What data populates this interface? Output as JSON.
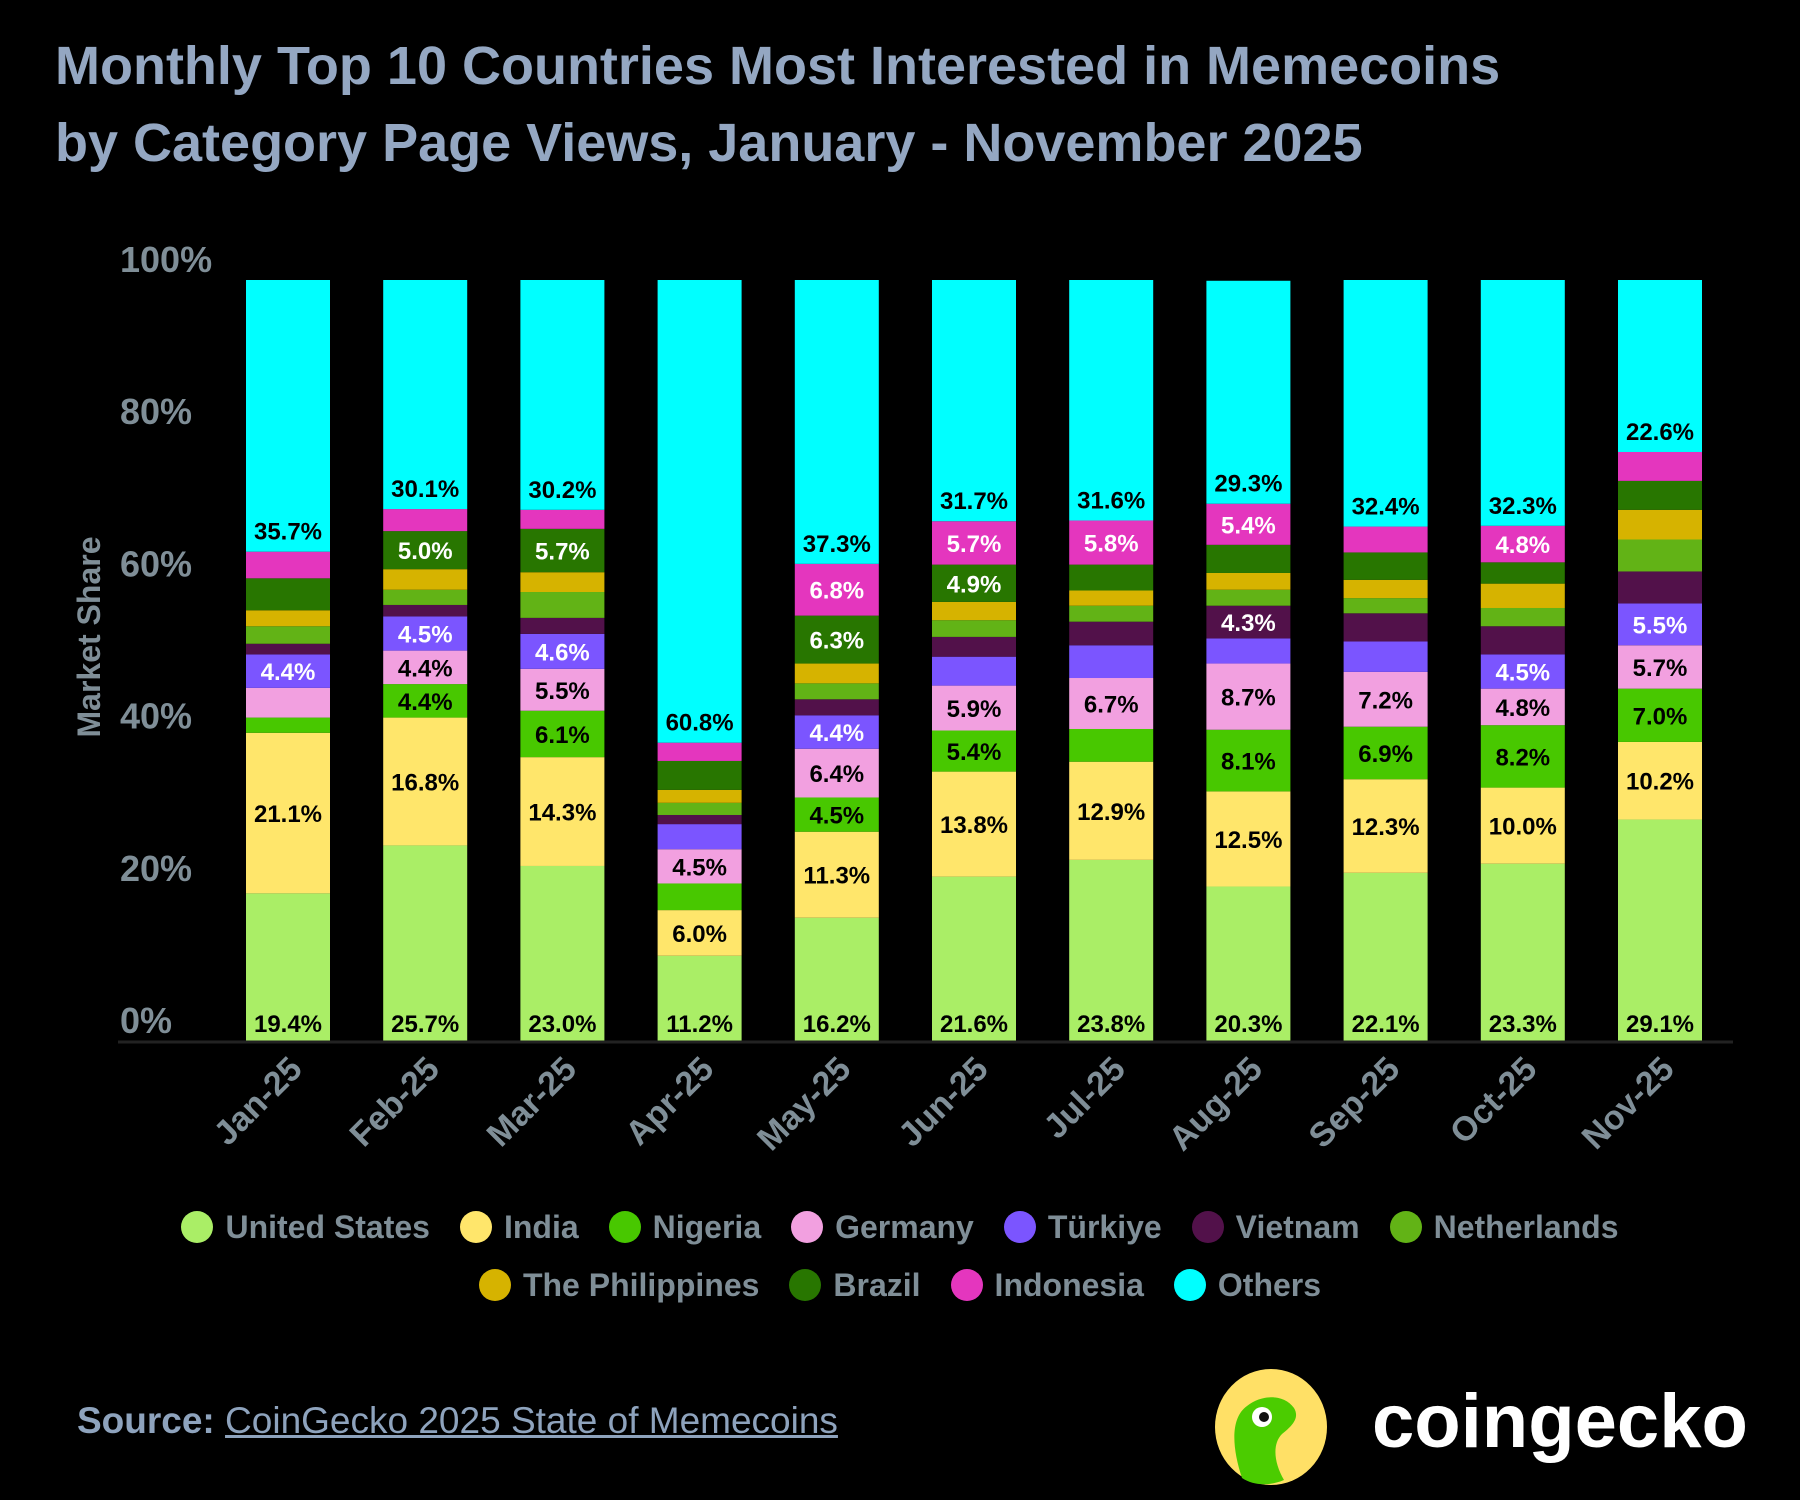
{
  "title": {
    "line1": "Monthly Top 10 Countries Most Interested in Memecoins",
    "line2": "by Category Page Views, January - November 2025"
  },
  "chart_data": {
    "type": "bar",
    "stacked": true,
    "title": "Monthly Top 10 Countries Most Interested in Memecoins by Category Page Views, January - November 2025",
    "xlabel": "",
    "ylabel": "Market Share",
    "ylim": [
      0,
      100
    ],
    "yticks": [
      "0%",
      "20%",
      "40%",
      "60%",
      "80%",
      "100%"
    ],
    "grid": false,
    "legend_position": "bottom",
    "categories": [
      "Jan-25",
      "Feb-25",
      "Mar-25",
      "Apr-25",
      "May-25",
      "Jun-25",
      "Jul-25",
      "Aug-25",
      "Sep-25",
      "Oct-25",
      "Nov-25"
    ],
    "series": [
      {
        "name": "United States",
        "color": "#aaee66",
        "label_color": "#000000",
        "values": [
          19.4,
          25.7,
          23.0,
          11.2,
          16.2,
          21.6,
          23.8,
          20.3,
          22.1,
          23.3,
          29.1
        ],
        "labels": [
          "19.4%",
          "25.7%",
          "23.0%",
          "11.2%",
          "16.2%",
          "21.6%",
          "23.8%",
          "20.3%",
          "22.1%",
          "23.3%",
          "29.1%"
        ]
      },
      {
        "name": "India",
        "color": "#ffe66b",
        "label_color": "#000000",
        "values": [
          21.1,
          16.8,
          14.3,
          6.0,
          11.3,
          13.8,
          12.9,
          12.5,
          12.3,
          10.0,
          10.2
        ],
        "labels": [
          "21.1%",
          "16.8%",
          "14.3%",
          "6.0%",
          "11.3%",
          "13.8%",
          "12.9%",
          "12.5%",
          "12.3%",
          "10.0%",
          "10.2%"
        ]
      },
      {
        "name": "Nigeria",
        "color": "#48c800",
        "label_color": "#000000",
        "values": [
          2.0,
          4.4,
          6.1,
          3.5,
          4.5,
          5.4,
          4.3,
          8.1,
          6.9,
          8.2,
          7.0
        ],
        "labels": [
          "",
          "4.4%",
          "6.1%",
          "",
          "4.5%",
          "5.4%",
          "",
          "8.1%",
          "6.9%",
          "8.2%",
          "7.0%"
        ]
      },
      {
        "name": "Germany",
        "color": "#f2a0e0",
        "label_color": "#000000",
        "values": [
          3.9,
          4.4,
          5.5,
          4.5,
          6.4,
          5.9,
          6.7,
          8.7,
          7.2,
          4.8,
          5.7
        ],
        "labels": [
          "",
          "4.4%",
          "5.5%",
          "4.5%",
          "6.4%",
          "5.9%",
          "6.7%",
          "8.7%",
          "7.2%",
          "4.8%",
          "5.7%"
        ]
      },
      {
        "name": "Türkiye",
        "color": "#7b55ff",
        "label_color": "#ffffff",
        "values": [
          4.4,
          4.5,
          4.6,
          3.3,
          4.4,
          3.8,
          4.3,
          3.3,
          4.0,
          4.5,
          5.5
        ],
        "labels": [
          "4.4%",
          "4.5%",
          "4.6%",
          "",
          "4.4%",
          "",
          "",
          "",
          "",
          "4.5%",
          "5.5%"
        ]
      },
      {
        "name": "Vietnam",
        "color": "#52114a",
        "label_color": "#ffffff",
        "values": [
          1.4,
          1.5,
          2.1,
          1.2,
          2.1,
          2.6,
          3.1,
          4.3,
          3.7,
          3.7,
          4.2
        ],
        "labels": [
          "",
          "",
          "",
          "",
          "",
          "",
          "",
          "4.3%",
          "",
          "",
          ""
        ]
      },
      {
        "name": "Netherlands",
        "color": "#62b316",
        "label_color": "#000000",
        "values": [
          2.3,
          2.0,
          3.4,
          1.6,
          2.1,
          2.2,
          2.1,
          2.1,
          2.0,
          2.4,
          4.2
        ],
        "labels": [
          "",
          "",
          "",
          "",
          "",
          "",
          "",
          "",
          "",
          "",
          ""
        ]
      },
      {
        "name": "The Philippines",
        "color": "#d6b300",
        "label_color": "#000000",
        "values": [
          2.1,
          2.7,
          2.6,
          1.7,
          2.6,
          2.4,
          2.0,
          2.2,
          2.4,
          3.2,
          3.9
        ],
        "labels": [
          "",
          "",
          "",
          "",
          "",
          "",
          "",
          "",
          "",
          "",
          ""
        ]
      },
      {
        "name": "Brazil",
        "color": "#287600",
        "label_color": "#ffffff",
        "values": [
          4.2,
          5.0,
          5.7,
          3.8,
          6.3,
          4.9,
          3.4,
          3.7,
          3.6,
          2.8,
          3.8
        ],
        "labels": [
          "",
          "5.0%",
          "5.7%",
          "",
          "6.3%",
          "4.9%",
          "",
          "",
          "",
          "",
          ""
        ]
      },
      {
        "name": "Indonesia",
        "color": "#e436be",
        "label_color": "#ffffff",
        "values": [
          3.5,
          2.9,
          2.5,
          2.4,
          6.8,
          5.7,
          5.8,
          5.4,
          3.4,
          4.8,
          3.8
        ],
        "labels": [
          "",
          "",
          "",
          "",
          "6.8%",
          "5.7%",
          "5.8%",
          "5.4%",
          "",
          "4.8%",
          ""
        ]
      },
      {
        "name": "Others",
        "color": "#00ffff",
        "label_color": "#000000",
        "values": [
          35.7,
          30.1,
          30.2,
          60.8,
          37.3,
          31.7,
          31.6,
          29.3,
          32.4,
          32.3,
          22.6
        ],
        "labels": [
          "35.7%",
          "30.1%",
          "30.2%",
          "60.8%",
          "37.3%",
          "31.7%",
          "31.6%",
          "29.3%",
          "32.4%",
          "32.3%",
          "22.6%"
        ]
      }
    ]
  },
  "legend": {
    "row1": [
      "United States",
      "India",
      "Nigeria",
      "Germany",
      "Türkiye",
      "Vietnam",
      "Netherlands"
    ],
    "row2": [
      "The Philippines",
      "Brazil",
      "Indonesia",
      "Others"
    ]
  },
  "source": {
    "label": "Source:",
    "link_text": "CoinGecko 2025 State of Memecoins"
  },
  "brand": {
    "name": "coingecko",
    "logo_icon": "gecko-logo-icon"
  }
}
